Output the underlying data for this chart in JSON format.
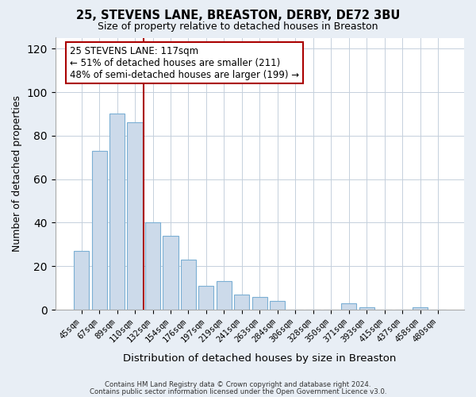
{
  "title": "25, STEVENS LANE, BREASTON, DERBY, DE72 3BU",
  "subtitle": "Size of property relative to detached houses in Breaston",
  "xlabel": "Distribution of detached houses by size in Breaston",
  "ylabel": "Number of detached properties",
  "bar_color": "#ccdaea",
  "bar_edge_color": "#7bafd4",
  "bin_labels": [
    "45sqm",
    "67sqm",
    "89sqm",
    "110sqm",
    "132sqm",
    "154sqm",
    "176sqm",
    "197sqm",
    "219sqm",
    "241sqm",
    "263sqm",
    "284sqm",
    "306sqm",
    "328sqm",
    "350sqm",
    "371sqm",
    "393sqm",
    "415sqm",
    "437sqm",
    "458sqm",
    "480sqm"
  ],
  "bar_heights": [
    27,
    73,
    90,
    86,
    40,
    34,
    23,
    11,
    13,
    7,
    6,
    4,
    0,
    0,
    0,
    3,
    1,
    0,
    0,
    1,
    0
  ],
  "vline_x": 3.5,
  "vline_color": "#aa0000",
  "ylim": [
    0,
    125
  ],
  "yticks": [
    0,
    20,
    40,
    60,
    80,
    100,
    120
  ],
  "annotation_title": "25 STEVENS LANE: 117sqm",
  "annotation_line1": "← 51% of detached houses are smaller (211)",
  "annotation_line2": "48% of semi-detached houses are larger (199) →",
  "footer1": "Contains HM Land Registry data © Crown copyright and database right 2024.",
  "footer2": "Contains public sector information licensed under the Open Government Licence v3.0.",
  "background_color": "#e8eef5",
  "plot_background": "#ffffff",
  "grid_color": "#c5d0dc"
}
